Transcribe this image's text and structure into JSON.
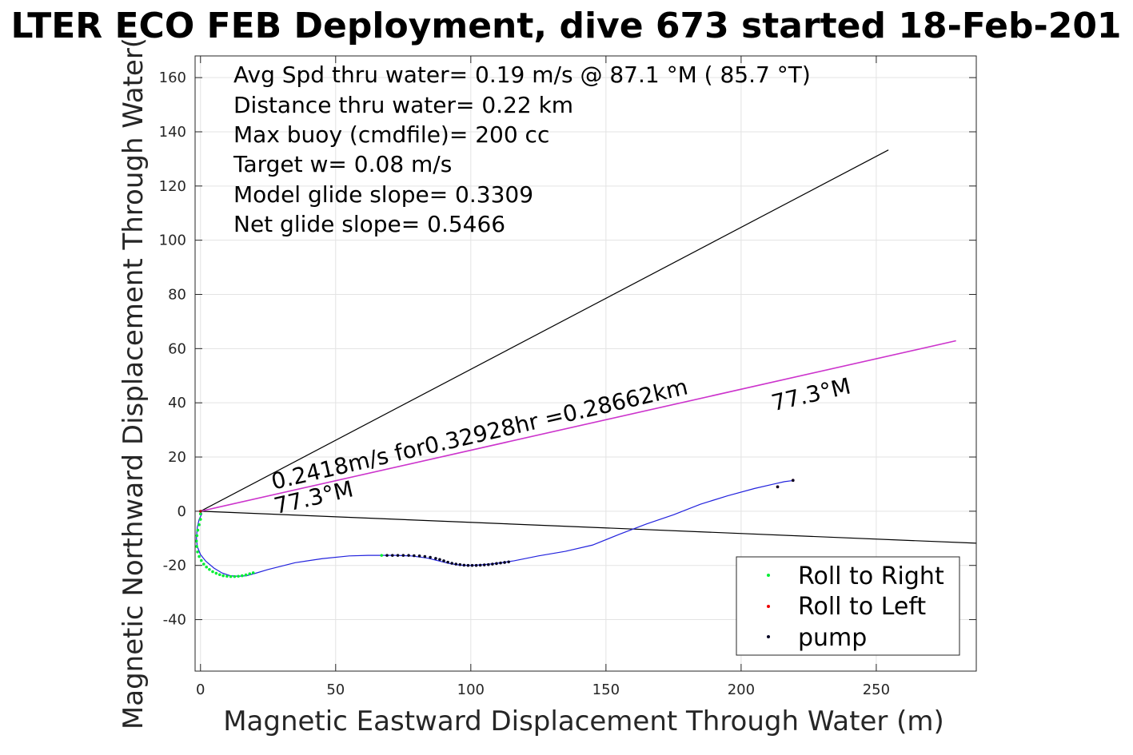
{
  "chart_data": {
    "type": "scatter",
    "title": "LTER ECO FEB Deployment, dive 673 started 18-Feb-201",
    "xlabel": "Magnetic Eastward Displacement Through Water (m)",
    "ylabel": "Magnetic Northward Displacement Through Water(",
    "xlim": [
      -2,
      287
    ],
    "ylim": [
      -59,
      168
    ],
    "grid": true,
    "xticks": [
      0,
      50,
      100,
      150,
      200,
      250
    ],
    "xtick_labels": [
      "0",
      "50",
      "100",
      "150",
      "200",
      "250"
    ],
    "yticks": [
      -40,
      -20,
      0,
      20,
      40,
      60,
      80,
      100,
      120,
      140,
      160
    ],
    "ytick_labels": [
      "-40",
      "-20",
      "0",
      "20",
      "40",
      "60",
      "80",
      "100",
      "120",
      "140",
      "160"
    ],
    "info_lines": [
      "Avg Spd thru water=  0.19 m/s @  87.1 °M ( 85.7 °T)",
      "Distance thru water=  0.22 km",
      "Max buoy (cmdfile)= 200 cc",
      "Target w= 0.08 m/s",
      "Model glide slope= 0.3309",
      "Net glide slope= 0.5466"
    ],
    "annotations": [
      {
        "text": "0.2418m/s for0.32928hr =0.28662km",
        "x": 27,
        "y": 8,
        "rotation_deg": 13
      },
      {
        "text": "77.3°M",
        "x": 28,
        "y": -1,
        "rotation_deg": 13
      },
      {
        "text": "77.3°M",
        "x": 212,
        "y": 37,
        "rotation_deg": 13
      }
    ],
    "lines": [
      {
        "name": "upper-bound",
        "color": "#000000",
        "x": [
          0,
          254.5
        ],
        "y": [
          0,
          133.3
        ]
      },
      {
        "name": "lower-bound",
        "color": "#000000",
        "x": [
          0,
          287
        ],
        "y": [
          0,
          -11.8
        ]
      },
      {
        "name": "heading-line",
        "color": "#cc33cc",
        "x": [
          0,
          279.5
        ],
        "y": [
          0,
          62.9
        ]
      }
    ],
    "track": {
      "color": "#2222dd",
      "x": [
        0,
        0.5,
        -0.5,
        -1.2,
        -1.5,
        -1.2,
        0,
        2,
        5,
        8,
        11,
        14,
        17,
        20,
        25,
        35,
        45,
        55,
        62,
        67,
        72,
        78,
        84,
        88,
        92,
        96,
        100,
        104,
        108,
        112,
        116,
        125,
        135,
        145,
        155,
        165,
        175,
        185,
        195,
        205,
        212,
        216,
        219
      ],
      "y": [
        0,
        -1,
        -3,
        -6,
        -10,
        -13,
        -16,
        -18.5,
        -21,
        -22.8,
        -23.8,
        -24,
        -23.8,
        -23,
        -21.5,
        -19,
        -17.5,
        -16.5,
        -16.3,
        -16.3,
        -16.3,
        -16.5,
        -17.3,
        -18.3,
        -19.3,
        -19.9,
        -20,
        -19.8,
        -19.4,
        -18.9,
        -18.3,
        -16.5,
        -14.8,
        -12.5,
        -8.5,
        -4.7,
        -1.3,
        2.6,
        5.7,
        8.4,
        10,
        10.9,
        11.3
      ]
    },
    "series": [
      {
        "name": "Roll to Right",
        "color": "#00ee33",
        "x": [
          0,
          0,
          -0.5,
          -1,
          -1.3,
          -1.5,
          -1.4,
          -1.1,
          -0.5,
          0.3,
          1.2,
          2.2,
          3.3,
          4.5,
          5.8,
          7.1,
          8.4,
          9.8,
          11.2,
          12.6,
          14,
          15.4,
          16.8,
          18.2,
          19.5,
          67
        ],
        "y": [
          -1,
          -3,
          -5,
          -7,
          -9,
          -11,
          -13,
          -15,
          -16.7,
          -18.2,
          -19.5,
          -20.6,
          -21.5,
          -22.3,
          -22.9,
          -23.4,
          -23.8,
          -24,
          -24.1,
          -24.1,
          -24,
          -23.8,
          -23.5,
          -23.1,
          -22.7,
          -16.3
        ]
      },
      {
        "name": "Roll to Left",
        "color": "#ee0000",
        "x": [
          0,
          213.5,
          219.2
        ],
        "y": [
          0,
          9,
          11.4
        ]
      },
      {
        "name": "pump",
        "color": "#000022",
        "x": [
          69,
          71,
          73,
          75,
          77,
          79,
          81,
          83,
          85,
          87,
          88.5,
          90,
          91.5,
          93,
          94.5,
          96,
          97.5,
          99,
          100.5,
          102,
          103.5,
          105,
          106.5,
          108,
          109.5,
          111,
          112.5,
          114,
          213.5,
          219.2
        ],
        "y": [
          -16.3,
          -16.3,
          -16.3,
          -16.3,
          -16.3,
          -16.4,
          -16.5,
          -16.7,
          -17,
          -17.4,
          -17.8,
          -18.3,
          -18.8,
          -19.2,
          -19.5,
          -19.7,
          -19.9,
          -20,
          -20,
          -20,
          -19.9,
          -19.8,
          -19.7,
          -19.5,
          -19.3,
          -19.1,
          -18.9,
          -18.7,
          9,
          11.4
        ]
      }
    ],
    "legend": {
      "placement": "bottom-right",
      "entries": [
        "Roll to Right",
        "Roll to Left",
        "pump"
      ]
    }
  }
}
